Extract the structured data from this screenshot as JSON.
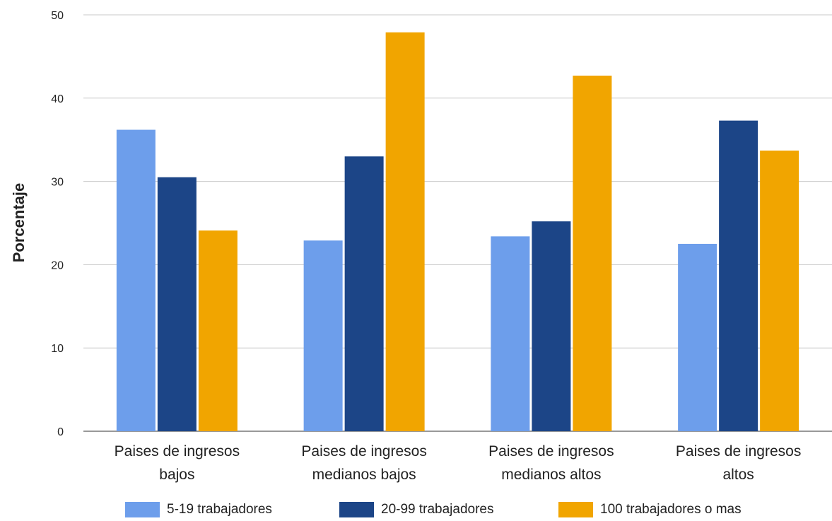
{
  "chart_data": {
    "type": "bar",
    "title": "",
    "xlabel": "",
    "ylabel": "Porcentaje",
    "ylim": [
      0,
      50
    ],
    "yticks": [
      0,
      10,
      20,
      30,
      40,
      50
    ],
    "grid": true,
    "legend_position": "bottom",
    "categories": [
      [
        "Paises de ingresos",
        "bajos"
      ],
      [
        "Paises de ingresos",
        "medianos bajos"
      ],
      [
        "Paises de ingresos",
        "medianos altos"
      ],
      [
        "Paises de ingresos",
        "altos"
      ]
    ],
    "series": [
      {
        "name": "5-19 trabajadores",
        "color": "#6d9eeb",
        "values": [
          36.2,
          22.9,
          23.4,
          22.5
        ]
      },
      {
        "name": "20-99 trabajadores",
        "color": "#1c4587",
        "values": [
          30.5,
          33.0,
          25.2,
          37.3
        ]
      },
      {
        "name": "100 trabajadores o mas",
        "color": "#f1a500",
        "values": [
          24.1,
          47.9,
          42.7,
          33.7
        ]
      }
    ]
  }
}
